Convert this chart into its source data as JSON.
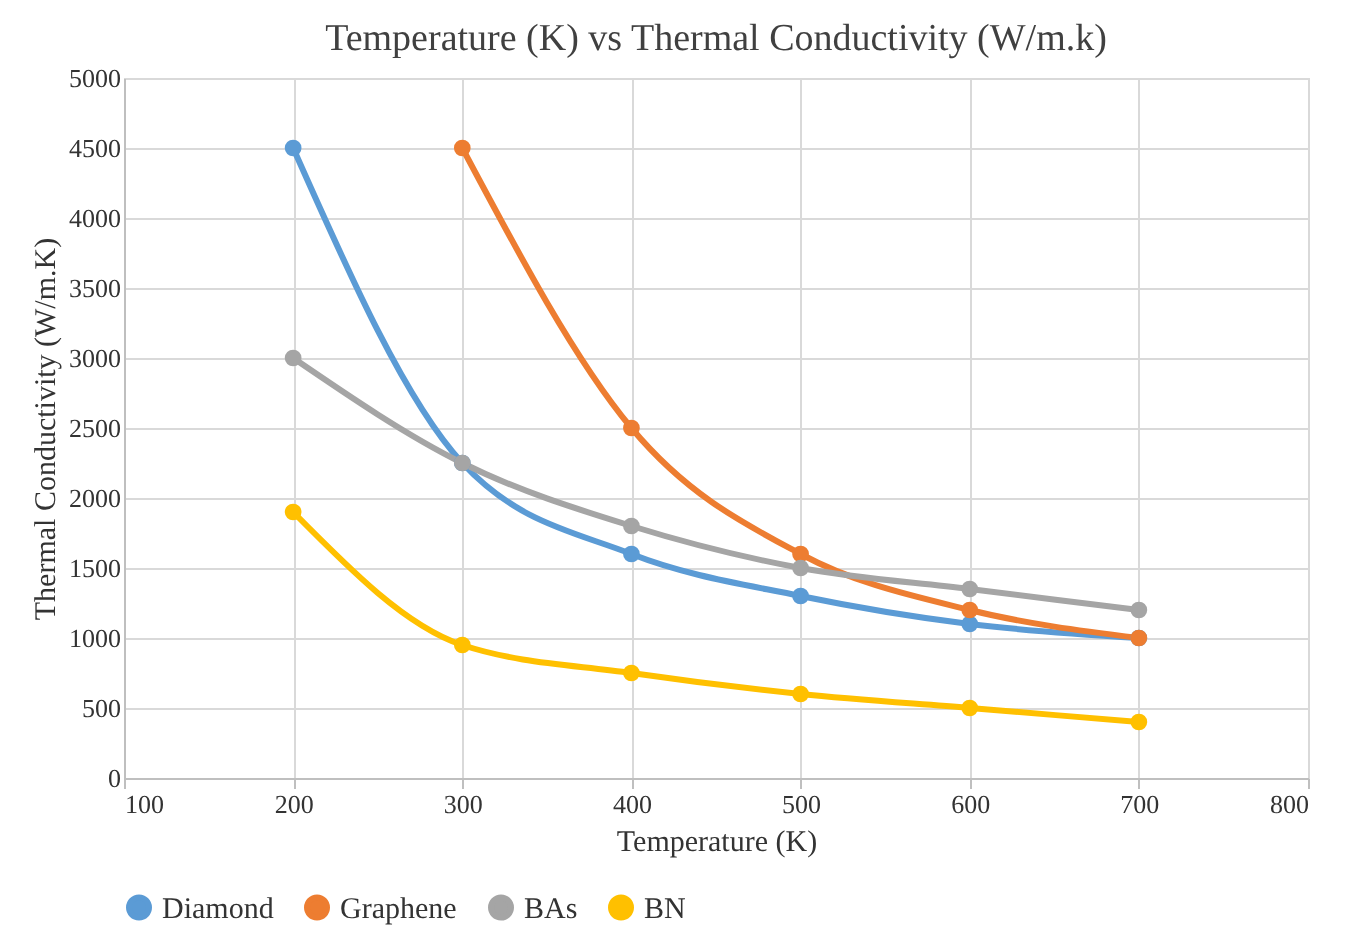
{
  "chart_data": {
    "type": "line",
    "title": "Temperature (K) vs Thermal Conductivity (W/m.k)",
    "xlabel": "Temperature (K)",
    "ylabel": "Thermal Conductivity (W/m.K)",
    "x": [
      200,
      300,
      400,
      500,
      600,
      700
    ],
    "series": [
      {
        "name": "Diamond",
        "color": "#5b9bd5",
        "values": [
          4500,
          2250,
          1600,
          1300,
          1100,
          1000
        ]
      },
      {
        "name": "Graphene",
        "color": "#ed7d31",
        "values": [
          null,
          4500,
          2500,
          1600,
          1200,
          1000
        ]
      },
      {
        "name": "BAs",
        "color": "#a5a5a5",
        "values": [
          3000,
          2250,
          1800,
          1500,
          1350,
          1200
        ]
      },
      {
        "name": "BN",
        "color": "#ffc000",
        "values": [
          1900,
          950,
          750,
          600,
          500,
          400
        ]
      }
    ],
    "xlim": [
      100,
      800
    ],
    "xticks": [
      100,
      200,
      300,
      400,
      500,
      600,
      700,
      800
    ],
    "ylim": [
      0,
      5000
    ],
    "yticks": [
      0,
      500,
      1000,
      1500,
      2000,
      2500,
      3000,
      3500,
      4000,
      4500,
      5000
    ],
    "grid": true,
    "legend": "bottom",
    "marker": "circle",
    "line_style": "solid"
  }
}
